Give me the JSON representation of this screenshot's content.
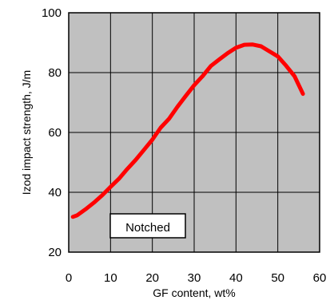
{
  "chart_data": {
    "type": "line",
    "title": "",
    "xlabel": "GF content, wt%",
    "ylabel": "Izod impact strength, J/m",
    "xlim": [
      0,
      60
    ],
    "ylim": [
      20,
      100
    ],
    "xticks": [
      0,
      10,
      20,
      30,
      40,
      50,
      60
    ],
    "yticks": [
      20,
      40,
      60,
      80,
      100
    ],
    "grid": true,
    "plot_background": "#c0c0c0",
    "annotation": "Notched",
    "series": [
      {
        "color": "#ff0000",
        "x": [
          1,
          2,
          4,
          6,
          8,
          10,
          12,
          14,
          16,
          18,
          20,
          22,
          24,
          26,
          28,
          30,
          32,
          34,
          36,
          38,
          40,
          42,
          44,
          46,
          48,
          50,
          52,
          54,
          56
        ],
        "y": [
          31.8,
          32.3,
          34.3,
          36.5,
          39,
          41.8,
          44.5,
          47.8,
          50.8,
          54.2,
          57.6,
          61.6,
          64.6,
          68.6,
          72.2,
          75.8,
          78.8,
          82.2,
          84.4,
          86.5,
          88.3,
          89.3,
          89.4,
          88.8,
          87.1,
          85.4,
          82.3,
          78.8,
          72.9
        ]
      }
    ]
  }
}
